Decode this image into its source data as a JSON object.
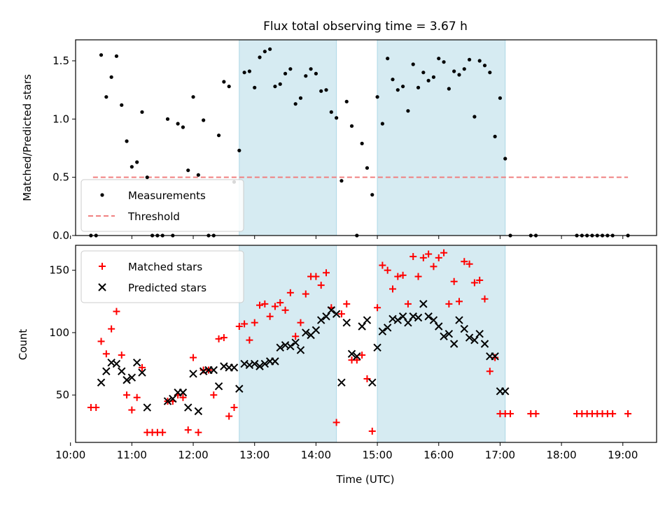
{
  "chart_data": [
    {
      "type": "scatter",
      "title": "Flux total observing time = 3.67 h",
      "ylabel": "Matched/Predicted stars",
      "xlabel": "",
      "xlim": [
        "10:05",
        "19:33"
      ],
      "ylim": [
        0,
        1.68
      ],
      "x_ticks": [
        "10:00",
        "11:00",
        "12:00",
        "13:00",
        "14:00",
        "15:00",
        "16:00",
        "17:00",
        "18:00",
        "19:00"
      ],
      "y_ticks": [
        "0.0",
        "0.5",
        "1.0",
        "1.5"
      ],
      "shaded_intervals": [
        [
          "12:45",
          "14:20"
        ],
        [
          "15:00",
          "17:05"
        ]
      ],
      "threshold": {
        "name": "Threshold",
        "value": 0.5,
        "x_range": [
          "10:22",
          "19:05"
        ],
        "color": "#f08080"
      },
      "legend": {
        "position": "lower-left",
        "entries": [
          "Measurements",
          "Threshold"
        ]
      },
      "series": [
        {
          "name": "Measurements",
          "marker": "dot",
          "color": "#000000",
          "x": [
            "10:20",
            "10:25",
            "10:30",
            "10:35",
            "10:40",
            "10:45",
            "10:50",
            "10:55",
            "11:00",
            "11:05",
            "11:10",
            "11:15",
            "11:20",
            "11:25",
            "11:30",
            "11:35",
            "11:40",
            "11:45",
            "11:50",
            "11:55",
            "12:00",
            "12:05",
            "12:10",
            "12:15",
            "12:20",
            "12:25",
            "12:30",
            "12:35",
            "12:40",
            "12:45",
            "12:50",
            "12:55",
            "13:00",
            "13:05",
            "13:10",
            "13:15",
            "13:20",
            "13:25",
            "13:30",
            "13:35",
            "13:40",
            "13:45",
            "13:50",
            "13:55",
            "14:00",
            "14:05",
            "14:10",
            "14:15",
            "14:20",
            "14:25",
            "14:30",
            "14:35",
            "14:40",
            "14:45",
            "14:50",
            "14:55",
            "15:00",
            "15:05",
            "15:10",
            "15:15",
            "15:20",
            "15:25",
            "15:30",
            "15:35",
            "15:40",
            "15:45",
            "15:50",
            "15:55",
            "16:00",
            "16:05",
            "16:10",
            "16:15",
            "16:20",
            "16:25",
            "16:30",
            "16:35",
            "16:40",
            "16:45",
            "16:50",
            "16:55",
            "17:00",
            "17:05",
            "17:10",
            "17:30",
            "17:35",
            "18:15",
            "18:20",
            "18:25",
            "18:30",
            "18:35",
            "18:40",
            "18:45",
            "18:50",
            "19:05"
          ],
          "y": [
            0.0,
            0.0,
            1.55,
            1.19,
            1.36,
            1.54,
            1.12,
            0.81,
            0.59,
            0.63,
            1.06,
            0.5,
            0.0,
            0.0,
            0.0,
            1.0,
            0.0,
            0.96,
            0.93,
            0.56,
            1.19,
            0.52,
            0.99,
            0.0,
            0.0,
            0.86,
            1.32,
            1.28,
            0.46,
            0.73,
            1.4,
            1.41,
            1.27,
            1.53,
            1.58,
            1.6,
            1.28,
            1.3,
            1.39,
            1.43,
            1.13,
            1.18,
            1.37,
            1.43,
            1.39,
            1.24,
            1.25,
            1.06,
            1.01,
            0.47,
            1.15,
            0.94,
            0.0,
            0.79,
            0.58,
            0.35,
            1.19,
            0.96,
            1.52,
            1.34,
            1.25,
            1.28,
            1.07,
            1.47,
            1.27,
            1.4,
            1.33,
            1.36,
            1.52,
            1.49,
            1.26,
            1.41,
            1.38,
            1.43,
            1.51,
            1.02,
            1.5,
            1.46,
            1.4,
            0.85,
            1.18,
            0.66,
            0.0,
            0.0,
            0.0,
            0.0,
            0.0,
            0.0,
            0.0,
            0.0,
            0.0,
            0.0,
            0.0,
            0.0
          ]
        }
      ]
    },
    {
      "type": "scatter",
      "title": "",
      "xlabel": "Time (UTC)",
      "ylabel": "Count",
      "xlim": [
        "10:05",
        "19:33"
      ],
      "ylim": [
        12,
        170
      ],
      "x_ticks": [
        "10:00",
        "11:00",
        "12:00",
        "13:00",
        "14:00",
        "15:00",
        "16:00",
        "17:00",
        "18:00",
        "19:00"
      ],
      "y_ticks": [
        "50",
        "100",
        "150"
      ],
      "shaded_intervals": [
        [
          "12:45",
          "14:20"
        ],
        [
          "15:00",
          "17:05"
        ]
      ],
      "legend": {
        "position": "top-left",
        "entries": [
          "Matched stars",
          "Predicted stars"
        ]
      },
      "series": [
        {
          "name": "Matched stars",
          "marker": "plus",
          "color": "#ff0000",
          "x": [
            "10:20",
            "10:25",
            "10:30",
            "10:35",
            "10:40",
            "10:45",
            "10:50",
            "10:55",
            "11:00",
            "11:05",
            "11:10",
            "11:15",
            "11:20",
            "11:25",
            "11:30",
            "11:35",
            "11:40",
            "11:45",
            "11:50",
            "11:55",
            "12:00",
            "12:05",
            "12:10",
            "12:15",
            "12:20",
            "12:25",
            "12:30",
            "12:35",
            "12:40",
            "12:45",
            "12:50",
            "12:55",
            "13:00",
            "13:05",
            "13:10",
            "13:15",
            "13:20",
            "13:25",
            "13:30",
            "13:35",
            "13:40",
            "13:45",
            "13:50",
            "13:55",
            "14:00",
            "14:05",
            "14:10",
            "14:15",
            "14:20",
            "14:25",
            "14:30",
            "14:35",
            "14:40",
            "14:45",
            "14:50",
            "14:55",
            "15:00",
            "15:05",
            "15:10",
            "15:15",
            "15:20",
            "15:25",
            "15:30",
            "15:35",
            "15:40",
            "15:45",
            "15:50",
            "15:55",
            "16:00",
            "16:05",
            "16:10",
            "16:15",
            "16:20",
            "16:25",
            "16:30",
            "16:35",
            "16:40",
            "16:45",
            "16:50",
            "16:55",
            "17:00",
            "17:05",
            "17:10",
            "17:30",
            "17:35",
            "18:15",
            "18:20",
            "18:25",
            "18:30",
            "18:35",
            "18:40",
            "18:45",
            "18:50",
            "19:05"
          ],
          "y": [
            40,
            40,
            93,
            83,
            103,
            117,
            82,
            50,
            38,
            48,
            72,
            20,
            20,
            20,
            20,
            45,
            45,
            50,
            48,
            22,
            80,
            20,
            70,
            70,
            50,
            95,
            96,
            33,
            40,
            105,
            107,
            94,
            108,
            122,
            123,
            113,
            121,
            124,
            118,
            132,
            97,
            108,
            131,
            145,
            145,
            138,
            148,
            120,
            28,
            115,
            123,
            78,
            78,
            82,
            63,
            21,
            120,
            154,
            150,
            135,
            145,
            146,
            123,
            161,
            145,
            160,
            163,
            153,
            160,
            164,
            123,
            141,
            125,
            157,
            155,
            140,
            142,
            127,
            69,
            80,
            35,
            35,
            35,
            35,
            35,
            35,
            35,
            35,
            35,
            35,
            35,
            35,
            35,
            35
          ]
        },
        {
          "name": "Predicted stars",
          "marker": "x",
          "color": "#000000",
          "x": [
            "10:30",
            "10:35",
            "10:40",
            "10:45",
            "10:50",
            "10:55",
            "11:00",
            "11:05",
            "11:10",
            "11:15",
            "11:35",
            "11:40",
            "11:45",
            "11:50",
            "11:55",
            "12:00",
            "12:05",
            "12:10",
            "12:15",
            "12:20",
            "12:25",
            "12:30",
            "12:35",
            "12:40",
            "12:45",
            "12:50",
            "12:55",
            "13:00",
            "13:05",
            "13:10",
            "13:15",
            "13:20",
            "13:25",
            "13:30",
            "13:35",
            "13:40",
            "13:45",
            "13:50",
            "13:55",
            "14:00",
            "14:05",
            "14:10",
            "14:15",
            "14:20",
            "14:25",
            "14:30",
            "14:35",
            "14:40",
            "14:45",
            "14:50",
            "14:55",
            "15:00",
            "15:05",
            "15:10",
            "15:15",
            "15:20",
            "15:25",
            "15:30",
            "15:35",
            "15:40",
            "15:45",
            "15:50",
            "15:55",
            "16:00",
            "16:05",
            "16:10",
            "16:15",
            "16:20",
            "16:25",
            "16:30",
            "16:35",
            "16:40",
            "16:45",
            "16:50",
            "16:55",
            "17:00",
            "17:05"
          ],
          "y": [
            60,
            69,
            76,
            75,
            69,
            62,
            64,
            76,
            68,
            40,
            45,
            47,
            52,
            52,
            40,
            67,
            37,
            69,
            70,
            70,
            57,
            73,
            72,
            72,
            55,
            75,
            74,
            75,
            73,
            75,
            77,
            77,
            88,
            90,
            89,
            92,
            86,
            100,
            98,
            102,
            110,
            113,
            118,
            115,
            60,
            108,
            83,
            81,
            105,
            110,
            60,
            88,
            101,
            104,
            111,
            110,
            113,
            108,
            113,
            112,
            123,
            113,
            110,
            105,
            97,
            99,
            91,
            110,
            103,
            96,
            94,
            99,
            91,
            81,
            81,
            53,
            53
          ]
        }
      ]
    }
  ]
}
